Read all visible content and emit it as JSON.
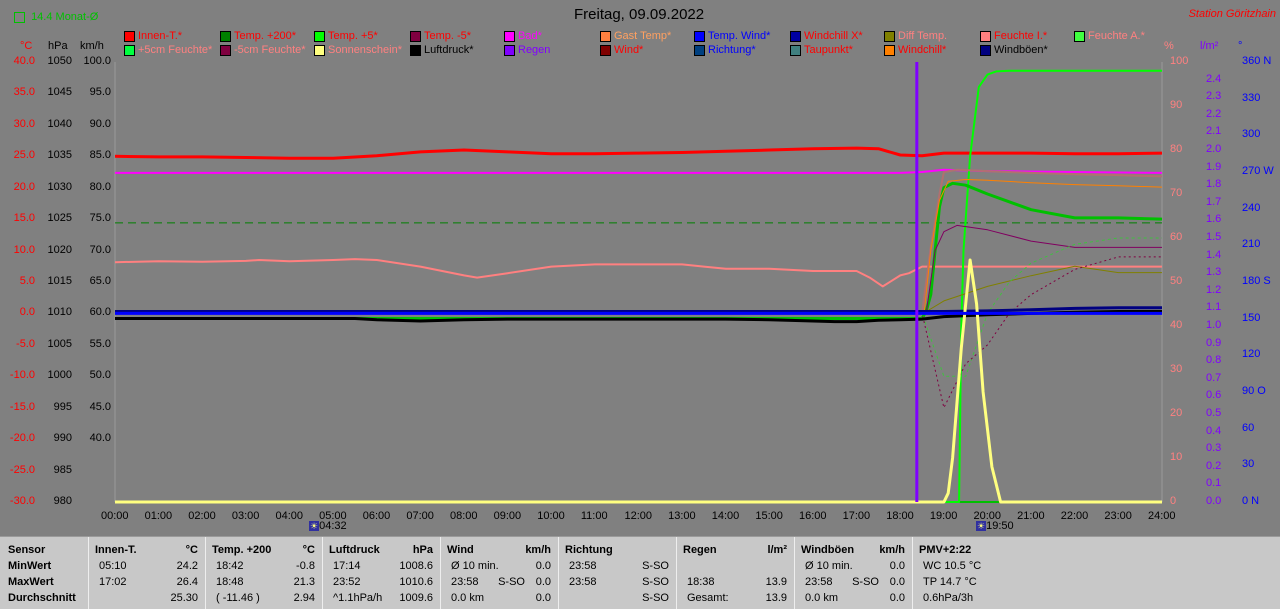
{
  "header": {
    "monat_label": "14.4 Monat-Ø",
    "title": "Freitag, 09.09.2022",
    "station": "Station Göritzhain"
  },
  "axes": {
    "left_units": [
      "°C",
      "hPa",
      "km/h"
    ],
    "right_units": [
      "%",
      "l/m²",
      "°"
    ],
    "temp_ticks": [
      "40.0",
      "35.0",
      "30.0",
      "25.0",
      "20.0",
      "15.0",
      "10.0",
      "5.0",
      "0.0",
      "-5.0",
      "-10.0",
      "-15.0",
      "-20.0",
      "-25.0",
      "-30.0"
    ],
    "hpa_ticks": [
      "1050",
      "1045",
      "1040",
      "1035",
      "1030",
      "1025",
      "1020",
      "1015",
      "1010",
      "1005",
      "1000",
      "995",
      "990",
      "985",
      "980"
    ],
    "kmh_ticks": [
      "100.0",
      "95.0",
      "90.0",
      "85.0",
      "80.0",
      "75.0",
      "70.0",
      "65.0",
      "60.0",
      "55.0",
      "50.0",
      "45.0",
      "40.0"
    ],
    "pct_ticks": [
      "100",
      "90",
      "80",
      "70",
      "60",
      "50",
      "40",
      "30",
      "20",
      "10",
      "0"
    ],
    "rain_ticks": [
      "2.4",
      "2.3",
      "2.2",
      "2.1",
      "2.0",
      "1.9",
      "1.8",
      "1.7",
      "1.6",
      "1.5",
      "1.4",
      "1.3",
      "1.2",
      "1.1",
      "1.0",
      "0.9",
      "0.8",
      "0.7",
      "0.6",
      "0.5",
      "0.4",
      "0.3",
      "0.2",
      "0.1",
      "0.0"
    ],
    "dir_ticks": [
      "360 N",
      "330",
      "300",
      "270 W",
      "240",
      "210",
      "180 S",
      "150",
      "120",
      "90 O",
      "60",
      "30",
      "0 N"
    ],
    "time_ticks": [
      "00:00",
      "01:00",
      "02:00",
      "03:00",
      "04:00",
      "05:00",
      "06:00",
      "07:00",
      "08:00",
      "09:00",
      "10:00",
      "11:00",
      "12:00",
      "13:00",
      "14:00",
      "15:00",
      "16:00",
      "17:00",
      "18:00",
      "19:00",
      "20:00",
      "21:00",
      "22:00",
      "23:00",
      "24:00"
    ],
    "sunrise": "04:32",
    "sunset": "19:50"
  },
  "legend": [
    {
      "label": "Innen-T.*",
      "color": "#ff0000"
    },
    {
      "label": "Temp. +200*",
      "color": "#008000"
    },
    {
      "label": "Temp. +5*",
      "color": "#00ff00"
    },
    {
      "label": "Temp. -5*",
      "color": "#800040"
    },
    {
      "label": "Bad*",
      "color": "#ff00ff"
    },
    {
      "label": "Gast Temp*",
      "color": "#ff8040"
    },
    {
      "label": "Temp. Wind*",
      "color": "#0000ff"
    },
    {
      "label": "Windchill X*",
      "color": "#0000a0"
    },
    {
      "label": "Diff Temp.",
      "color": "#808000"
    },
    {
      "label": "Feuchte I.*",
      "color": "#ff8080"
    },
    {
      "label": "Feuchte A.*",
      "color": "#40ff40"
    },
    {
      "label": "+5cm Feuchte*",
      "color": "#00ff40"
    },
    {
      "label": "-5cm Feuchte*",
      "color": "#800040"
    },
    {
      "label": "Sonnenschein*",
      "color": "#ffff80"
    },
    {
      "label": "Luftdruck*",
      "color": "#000000"
    },
    {
      "label": "Regen",
      "color": "#8000ff"
    },
    {
      "label": "Wind*",
      "color": "#800000"
    },
    {
      "label": "Richtung*",
      "color": "#004080"
    },
    {
      "label": "Taupunkt*",
      "color": "#408080"
    },
    {
      "label": "Windchill*",
      "color": "#ff8000"
    },
    {
      "label": "Windböen*",
      "color": "#000080"
    }
  ],
  "legend_text_colors": [
    "#ff0000",
    "#ff0000",
    "#ff0000",
    "#ff0000",
    "#ff00ff",
    "#ffa060",
    "#0000ff",
    "#ff0000",
    "#ff8080",
    "#ff0000",
    "#ff8080",
    "#ff8080",
    "#ff8080",
    "#ff8080",
    "#000000",
    "#8000ff",
    "#ff0000",
    "#0000ff",
    "#ff0000",
    "#ff0000",
    "#000000"
  ],
  "chart_data": {
    "type": "line",
    "x_unit": "hours",
    "xlim": [
      0,
      24
    ],
    "ylim_temp": [
      -30,
      40
    ],
    "ylim_humidity": [
      0,
      100
    ],
    "series": [
      {
        "name": "Innen-T.*",
        "color": "#ff0000",
        "axis": "temp",
        "width": 3,
        "x": [
          0,
          1,
          2,
          3,
          4,
          5,
          6,
          7,
          8,
          9,
          10,
          11,
          12,
          13,
          14,
          15,
          16,
          17,
          17.5,
          18,
          18.5,
          19,
          20,
          21,
          22,
          23,
          24
        ],
        "y": [
          25.0,
          24.9,
          24.9,
          24.8,
          24.7,
          24.7,
          25.1,
          25.7,
          26.0,
          25.7,
          25.4,
          25.4,
          25.5,
          25.6,
          25.8,
          26.0,
          26.2,
          26.3,
          26.2,
          25.2,
          25.1,
          25.5,
          25.5,
          25.5,
          25.4,
          25.4,
          25.5
        ]
      },
      {
        "name": "Feuchte I.*",
        "color": "#ff8080",
        "axis": "humidity",
        "width": 2,
        "x": [
          0,
          1,
          2,
          3,
          3.3,
          4,
          5,
          5.5,
          6,
          7,
          8,
          8.3,
          9,
          10,
          11,
          12,
          13,
          13.5,
          14,
          15,
          16,
          17,
          17.3,
          17.6,
          18,
          18.2,
          18.5,
          19,
          20,
          21,
          22,
          23,
          24
        ],
        "y": [
          54.5,
          54.7,
          54.6,
          54.8,
          55.0,
          54.7,
          55.0,
          55.2,
          55.0,
          53.5,
          51.5,
          51.0,
          52.0,
          53.5,
          54.0,
          54.0,
          54.0,
          53.5,
          53.0,
          53.0,
          52.5,
          52.5,
          51.0,
          49.0,
          51.5,
          52.0,
          53.5,
          53.5,
          53.5,
          53.5,
          53.5,
          53.5,
          53.5
        ]
      },
      {
        "name": "Bad*",
        "color": "#ff00ff",
        "axis": "humidity",
        "width": 2,
        "x": [
          0,
          18,
          18.5,
          19,
          20,
          24
        ],
        "y": [
          74.8,
          74.8,
          75.0,
          75.5,
          75.2,
          74.8
        ]
      },
      {
        "name": "Temp. +5*",
        "color": "#00ff00",
        "axis": "temp",
        "width": 2,
        "x": [
          0,
          19.35,
          19.4,
          19.45,
          19.6,
          19.8,
          20,
          20.2,
          20.5,
          21,
          22,
          23,
          24
        ],
        "y": [
          -32,
          -32,
          -2,
          10,
          25,
          36,
          38,
          38.5,
          38.6,
          38.6,
          38.6,
          38.6,
          38.6
        ]
      },
      {
        "name": "Temp. +200*",
        "color": "#00c000",
        "axis": "temp",
        "width": 3,
        "x": [
          0,
          18.5,
          18.6,
          18.7,
          18.8,
          18.9,
          19.0,
          19.2,
          19.5,
          20,
          21,
          22,
          23,
          24
        ],
        "y": [
          -0.8,
          -0.8,
          0.5,
          3,
          10,
          17,
          20.0,
          20.7,
          20.4,
          19.0,
          16.5,
          15.2,
          15.2,
          15.0
        ]
      },
      {
        "name": "Feuchte A.*",
        "color": "#b07070",
        "axis": "humidity",
        "width": 2,
        "x": [
          0,
          18.5,
          18.7,
          18.9,
          19.0,
          19.3,
          20,
          21,
          22,
          23,
          24
        ],
        "y": [
          43.0,
          43.0,
          58.0,
          70.0,
          75.0,
          75.5,
          75.2,
          74.8,
          74.5,
          74.3,
          74.0
        ]
      },
      {
        "name": "Windchill*",
        "color": "#ff8000",
        "axis": "temp",
        "width": 1,
        "x": [
          0,
          18.55,
          18.7,
          18.9,
          19.1,
          19.5,
          20,
          21,
          22,
          23,
          24
        ],
        "y": [
          0.2,
          0.2,
          10,
          18,
          21.0,
          21.3,
          21.2,
          20.8,
          20.5,
          20.3,
          20.1
        ]
      },
      {
        "name": "Temp. -5*",
        "color": "#800060",
        "axis": "temp",
        "width": 1,
        "x": [
          0,
          18.6,
          18.8,
          19.0,
          19.3,
          20,
          21,
          22,
          23,
          24
        ],
        "y": [
          0.3,
          0.3,
          10,
          13,
          14.0,
          13.3,
          11.5,
          10.5,
          10.5,
          10.5
        ]
      },
      {
        "name": "Diff Temp.",
        "color": "#808000",
        "axis": "temp",
        "width": 1,
        "x": [
          0,
          18.6,
          19,
          20,
          21,
          22,
          23,
          24
        ],
        "y": [
          0.3,
          0.3,
          2.0,
          4.3,
          6.0,
          7.5,
          6.5,
          6.5
        ]
      },
      {
        "name": "Taupunkt*",
        "color": "#40c040",
        "axis": "temp",
        "width": 1,
        "dash": "3,3",
        "x": [
          0,
          18.5,
          19,
          19.5,
          20,
          20.5,
          21,
          22,
          23,
          24
        ],
        "y": [
          0,
          0,
          -10,
          -10,
          0,
          5,
          8,
          11,
          12,
          12
        ]
      },
      {
        "name": "-5cm Feuchte*",
        "color": "#800040",
        "axis": "temp",
        "width": 1,
        "dash": "2,3",
        "x": [
          0,
          18.5,
          19,
          19.5,
          20,
          20.5,
          21,
          22,
          23,
          24
        ],
        "y": [
          0,
          0,
          -15,
          -8,
          -5,
          0,
          3,
          7,
          9,
          9
        ]
      },
      {
        "name": "Windböen*",
        "color": "#000080",
        "axis": "temp",
        "width": 3,
        "x": [
          0,
          18.5,
          19,
          20,
          21,
          22,
          23,
          24
        ],
        "y": [
          0.3,
          0.3,
          0.3,
          0.4,
          0.6,
          0.8,
          0.9,
          0.9
        ]
      },
      {
        "name": "Luftdruck*",
        "color": "#000000",
        "axis": "temp",
        "width": 3,
        "x": [
          0,
          5.5,
          6,
          7,
          8,
          9,
          10,
          14,
          15,
          16,
          16.5,
          17,
          17.5,
          18,
          18.5,
          19,
          20,
          21,
          22,
          23,
          24
        ],
        "y": [
          -0.8,
          -0.8,
          -1.0,
          -1.2,
          -1.0,
          -0.9,
          -0.9,
          -0.9,
          -1.0,
          -1.2,
          -1.3,
          -1.3,
          -1.1,
          -1.0,
          -0.9,
          -0.5,
          -0.2,
          0.0,
          0.2,
          0.3,
          0.3
        ]
      },
      {
        "name": "Sonnenschein*",
        "color": "#ffff80",
        "axis": "humidity",
        "width": 3,
        "x": [
          0,
          19.0,
          19.1,
          19.2,
          19.4,
          19.6,
          19.75,
          19.9,
          20.1,
          20.3,
          24
        ],
        "y": [
          0,
          0,
          2,
          10,
          35,
          55,
          45,
          25,
          8,
          0,
          0
        ]
      },
      {
        "name": "Temp. Wind*",
        "color": "#0000ff",
        "axis": "temp",
        "width": 3,
        "x": [
          0,
          24
        ],
        "y": [
          0.0,
          0.0
        ]
      }
    ],
    "hlines": [
      {
        "name": "14.4 Monat-Ø",
        "color": "#008000",
        "axis": "temp",
        "value": 14.4,
        "dash": "8,5"
      }
    ],
    "vlines": [
      {
        "name": "Regen",
        "color": "#8000ff",
        "x": 18.38,
        "width": 3
      }
    ]
  },
  "table": {
    "sensor_labels": [
      "Sensor",
      "MinWert",
      "MaxWert",
      "Durchschnitt"
    ],
    "blocks": [
      {
        "title": "Innen-T.",
        "unit": "°C",
        "rows": [
          [
            "05:10",
            "",
            "24.2"
          ],
          [
            "17:02",
            "",
            "26.4"
          ],
          [
            "",
            "",
            "25.30"
          ]
        ]
      },
      {
        "title": "Temp. +200",
        "unit": "°C",
        "rows": [
          [
            "18:42",
            "",
            "-0.8"
          ],
          [
            "18:48",
            "",
            "21.3"
          ],
          [
            "( -11.46 )",
            "",
            "2.94"
          ]
        ]
      },
      {
        "title": "Luftdruck",
        "unit": "hPa",
        "rows": [
          [
            "17:14",
            "",
            "1008.6"
          ],
          [
            "23:52",
            "",
            "1010.6"
          ],
          [
            "^1.1hPa/h",
            "",
            "1009.6"
          ]
        ]
      },
      {
        "title": "Wind",
        "unit": "km/h",
        "rows": [
          [
            "Ø 10 min.",
            "",
            "0.0"
          ],
          [
            "23:58",
            "S-SO",
            "0.0"
          ],
          [
            "0.0 km",
            "",
            "0.0"
          ]
        ]
      },
      {
        "title": "Richtung",
        "unit": "",
        "rows": [
          [
            "23:58",
            "",
            "S-SO"
          ],
          [
            "23:58",
            "",
            "S-SO"
          ],
          [
            "",
            "",
            "S-SO"
          ]
        ]
      },
      {
        "title": "Regen",
        "unit": "l/m²",
        "rows": [
          [
            "",
            "",
            ""
          ],
          [
            "18:38",
            "",
            "13.9"
          ],
          [
            "Gesamt:",
            "",
            "13.9"
          ]
        ]
      },
      {
        "title": "Windböen",
        "unit": "km/h",
        "rows": [
          [
            "Ø 10 min.",
            "",
            "0.0"
          ],
          [
            "23:58",
            "S-SO",
            "0.0"
          ],
          [
            "0.0 km",
            "",
            "0.0"
          ]
        ]
      },
      {
        "title": "PMV+2:22",
        "unit": "",
        "rows": [
          [
            "WC 10.5 °C",
            "",
            ""
          ],
          [
            "TP 14.7 °C",
            "",
            ""
          ],
          [
            "0.6hPa/3h",
            "",
            ""
          ]
        ]
      }
    ]
  }
}
